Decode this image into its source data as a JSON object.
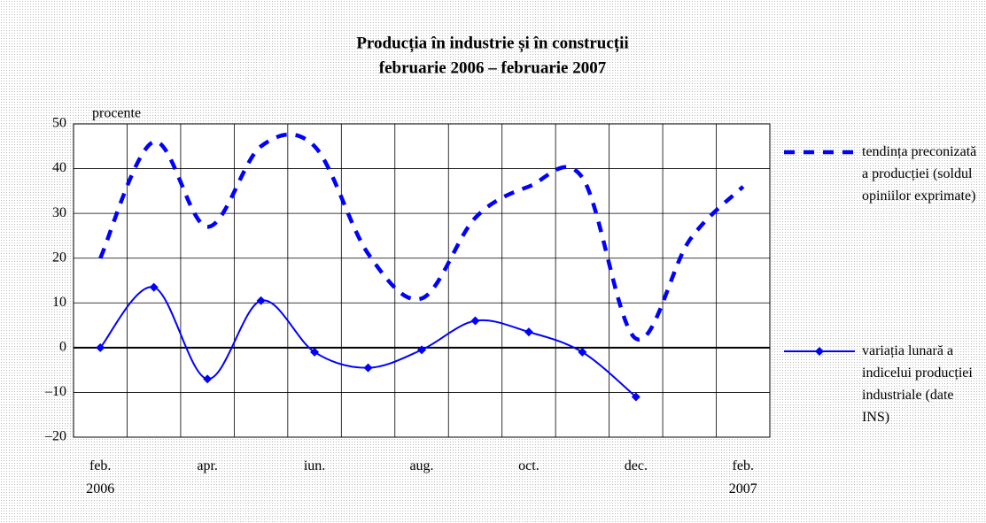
{
  "chart_data": {
    "type": "line",
    "title": "Producția în industrie și în construcții",
    "subtitle": "februarie 2006 – februarie 2007",
    "y_label": "procente",
    "categories": [
      "feb.\n2006",
      null,
      "apr.",
      null,
      "iun.",
      null,
      "aug.",
      null,
      "oct.",
      null,
      "dec.",
      null,
      "feb.\n2007"
    ],
    "series": [
      {
        "name": "tendința preconizată a producției (soldul opiniilor exprimate)",
        "color": "#0000ff",
        "style": "dashed",
        "values": [
          20,
          46,
          27,
          45,
          45,
          21,
          11,
          29,
          36,
          38,
          2,
          24,
          36
        ]
      },
      {
        "name": "variația lunară a indicelui producției industriale (date INS)",
        "color": "#0000ff",
        "style": "solid",
        "values": [
          0,
          13.5,
          -7,
          10.5,
          -1,
          -4.5,
          -0.5,
          6,
          3.5,
          -1,
          -11,
          null,
          null
        ]
      }
    ],
    "ylim": [
      -20,
      50
    ],
    "yticks": [
      {
        "value": -20,
        "label": "–20"
      },
      {
        "value": -10,
        "label": "–10"
      },
      0,
      10,
      20,
      30,
      40,
      50
    ],
    "grid": true
  }
}
